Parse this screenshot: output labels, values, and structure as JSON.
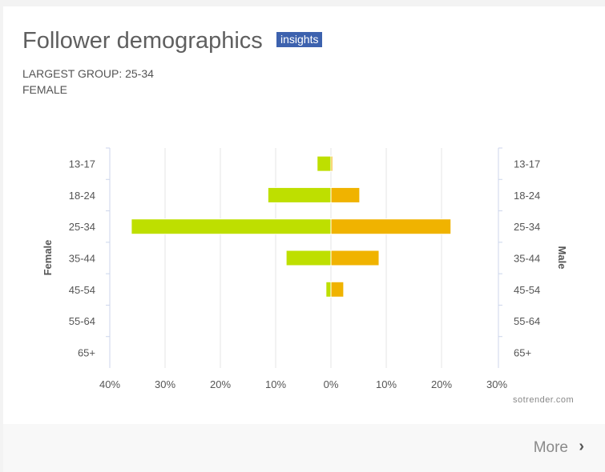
{
  "header": {
    "title": "Follower demographics",
    "badge": "insights",
    "largest_group": "LARGEST GROUP: 25-34",
    "largest_gender": "FEMALE"
  },
  "footer": {
    "more_label": "More",
    "credit": "sotrender.com"
  },
  "colors": {
    "female": "#bedf00",
    "male": "#f0b300",
    "badge": "#3d62ae"
  },
  "chart_data": {
    "type": "bar",
    "orientation": "horizontal-population-pyramid",
    "categories": [
      "13-17",
      "18-24",
      "25-34",
      "35-44",
      "45-54",
      "55-64",
      "65+"
    ],
    "series": [
      {
        "name": "Female",
        "values": [
          2.5,
          11.4,
          36.1,
          8.1,
          0.9,
          0,
          0
        ]
      },
      {
        "name": "Male",
        "values": [
          0.3,
          5.2,
          21.7,
          8.7,
          2.3,
          0,
          0
        ]
      }
    ],
    "xticks": [
      "40%",
      "30%",
      "20%",
      "10%",
      "0%",
      "10%",
      "20%",
      "30%"
    ],
    "xlim": [
      -40,
      30
    ],
    "left_axis_label": "Female",
    "right_axis_label": "Male",
    "grid": true
  }
}
